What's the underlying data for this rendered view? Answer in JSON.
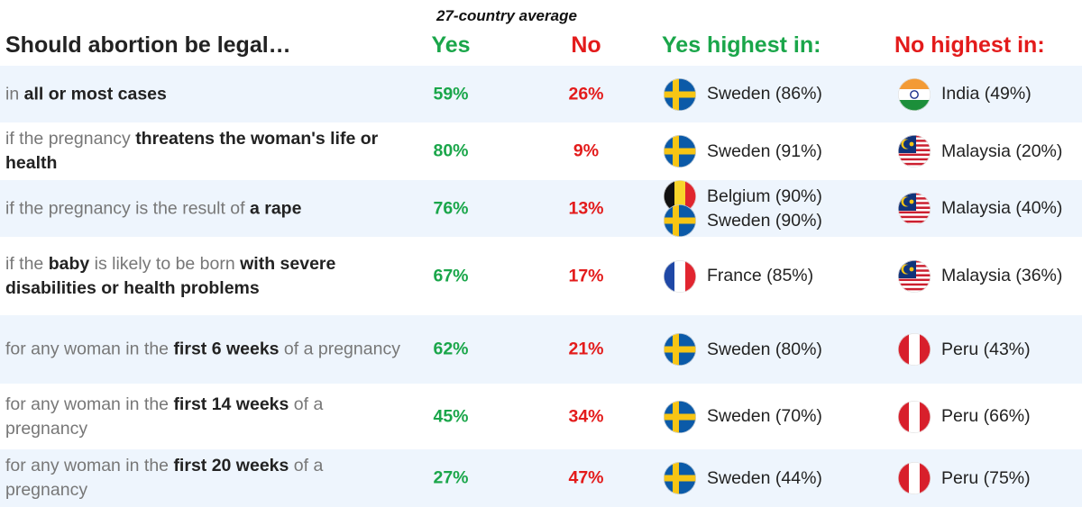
{
  "header": {
    "subtitle": "27-country average",
    "title": "Should abortion be legal…",
    "yes": "Yes",
    "no": "No",
    "yes_highest": "Yes highest in:",
    "no_highest": "No highest in:"
  },
  "rows": [
    {
      "label": [
        [
          "in ",
          false
        ],
        [
          "all or most cases",
          true
        ]
      ],
      "yes": "59%",
      "no": "26%",
      "yes_high": [
        {
          "flag": "sweden",
          "text": "Sweden (86%)"
        }
      ],
      "no_high": [
        {
          "flag": "india",
          "text": "India (49%)"
        }
      ]
    },
    {
      "label": [
        [
          "if the pregnancy ",
          false
        ],
        [
          "threatens the woman's life or health",
          true
        ]
      ],
      "yes": "80%",
      "no": "9%",
      "yes_high": [
        {
          "flag": "sweden",
          "text": "Sweden (91%)"
        }
      ],
      "no_high": [
        {
          "flag": "malaysia",
          "text": "Malaysia (20%)"
        }
      ]
    },
    {
      "label": [
        [
          "if the pregnancy is the result of ",
          false
        ],
        [
          "a rape",
          true
        ]
      ],
      "yes": "76%",
      "no": "13%",
      "yes_high": [
        {
          "flag": "belgium",
          "text": "Belgium (90%)"
        },
        {
          "flag": "sweden",
          "text": "Sweden (90%)"
        }
      ],
      "no_high": [
        {
          "flag": "malaysia",
          "text": "Malaysia (40%)"
        }
      ]
    },
    {
      "label": [
        [
          "if the ",
          false
        ],
        [
          "baby",
          true
        ],
        [
          " is likely to be born ",
          false
        ],
        [
          "with severe disabilities or health problems",
          true
        ]
      ],
      "yes": "67%",
      "no": "17%",
      "yes_high": [
        {
          "flag": "france",
          "text": "France (85%)"
        }
      ],
      "no_high": [
        {
          "flag": "malaysia",
          "text": "Malaysia (36%)"
        }
      ]
    },
    {
      "label": [
        [
          "for any woman in the ",
          false
        ],
        [
          "first 6 weeks",
          true
        ],
        [
          " of a pregnancy",
          false
        ]
      ],
      "yes": "62%",
      "no": "21%",
      "yes_high": [
        {
          "flag": "sweden",
          "text": "Sweden (80%)"
        }
      ],
      "no_high": [
        {
          "flag": "peru",
          "text": "Peru (43%)"
        }
      ]
    },
    {
      "label": [
        [
          "for any woman in the ",
          false
        ],
        [
          "first 14 weeks",
          true
        ],
        [
          " of a pregnancy",
          false
        ]
      ],
      "yes": "45%",
      "no": "34%",
      "yes_high": [
        {
          "flag": "sweden",
          "text": "Sweden (70%)"
        }
      ],
      "no_high": [
        {
          "flag": "peru",
          "text": "Peru (66%)"
        }
      ]
    },
    {
      "label": [
        [
          "for any woman in the ",
          false
        ],
        [
          "first 20 weeks",
          true
        ],
        [
          " of a pregnancy",
          false
        ]
      ],
      "yes": "27%",
      "no": "47%",
      "yes_high": [
        {
          "flag": "sweden",
          "text": "Sweden (44%)"
        }
      ],
      "no_high": [
        {
          "flag": "peru",
          "text": "Peru (75%)"
        }
      ]
    }
  ],
  "colors": {
    "yes": "#1aa64a",
    "no": "#e31b1b",
    "shade": "#eef5fd"
  },
  "chart_data": {
    "type": "table",
    "title": "Should abortion be legal…",
    "subtitle": "27-country average",
    "columns": [
      "Yes",
      "No",
      "Yes highest in:",
      "No highest in:"
    ],
    "categories": [
      "in all or most cases",
      "if the pregnancy threatens the woman's life or health",
      "if the pregnancy is the result of a rape",
      "if the baby is likely to be born with severe disabilities or health problems",
      "for any woman in the first 6 weeks of a pregnancy",
      "for any woman in the first 14 weeks of a pregnancy",
      "for any woman in the first 20 weeks of a pregnancy"
    ],
    "series": [
      {
        "name": "Yes",
        "values": [
          59,
          80,
          76,
          67,
          62,
          45,
          27
        ]
      },
      {
        "name": "No",
        "values": [
          26,
          9,
          13,
          17,
          21,
          34,
          47
        ]
      }
    ],
    "yes_highest": [
      [
        {
          "country": "Sweden",
          "value": 86
        }
      ],
      [
        {
          "country": "Sweden",
          "value": 91
        }
      ],
      [
        {
          "country": "Belgium",
          "value": 90
        },
        {
          "country": "Sweden",
          "value": 90
        }
      ],
      [
        {
          "country": "France",
          "value": 85
        }
      ],
      [
        {
          "country": "Sweden",
          "value": 80
        }
      ],
      [
        {
          "country": "Sweden",
          "value": 70
        }
      ],
      [
        {
          "country": "Sweden",
          "value": 44
        }
      ]
    ],
    "no_highest": [
      [
        {
          "country": "India",
          "value": 49
        }
      ],
      [
        {
          "country": "Malaysia",
          "value": 20
        }
      ],
      [
        {
          "country": "Malaysia",
          "value": 40
        }
      ],
      [
        {
          "country": "Malaysia",
          "value": 36
        }
      ],
      [
        {
          "country": "Peru",
          "value": 43
        }
      ],
      [
        {
          "country": "Peru",
          "value": 66
        }
      ],
      [
        {
          "country": "Peru",
          "value": 75
        }
      ]
    ]
  }
}
